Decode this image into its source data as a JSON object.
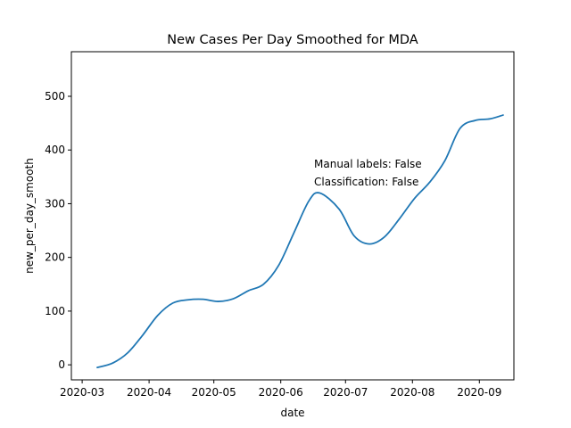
{
  "chart_data": {
    "type": "line",
    "title": "New Cases Per Day Smoothed for MDA",
    "xlabel": "date",
    "ylabel": "new_per_day_smooth",
    "xlim": [
      "2020-02-25",
      "2020-09-17"
    ],
    "ylim": [
      -28,
      583
    ],
    "x_ticks": [
      "2020-03-01",
      "2020-04-01",
      "2020-05-01",
      "2020-06-01",
      "2020-07-01",
      "2020-08-01",
      "2020-09-01"
    ],
    "x_tick_labels": [
      "2020-03",
      "2020-04",
      "2020-05",
      "2020-06",
      "2020-07",
      "2020-08",
      "2020-09"
    ],
    "y_ticks": [
      0,
      100,
      200,
      300,
      400,
      500
    ],
    "y_tick_labels": [
      "0",
      "100",
      "200",
      "300",
      "400",
      "500"
    ],
    "grid": false,
    "series": [
      {
        "color": "#1f77b4",
        "points": [
          [
            "2020-03-08",
            -5
          ],
          [
            "2020-03-15",
            3
          ],
          [
            "2020-03-22",
            22
          ],
          [
            "2020-03-29",
            55
          ],
          [
            "2020-04-05",
            92
          ],
          [
            "2020-04-12",
            115
          ],
          [
            "2020-04-19",
            121
          ],
          [
            "2020-04-26",
            122
          ],
          [
            "2020-05-03",
            118
          ],
          [
            "2020-05-10",
            123
          ],
          [
            "2020-05-17",
            138
          ],
          [
            "2020-05-24",
            150
          ],
          [
            "2020-05-31",
            185
          ],
          [
            "2020-06-07",
            245
          ],
          [
            "2020-06-14",
            305
          ],
          [
            "2020-06-19",
            320
          ],
          [
            "2020-06-28",
            290
          ],
          [
            "2020-07-05",
            240
          ],
          [
            "2020-07-12",
            225
          ],
          [
            "2020-07-19",
            238
          ],
          [
            "2020-07-26",
            272
          ],
          [
            "2020-08-02",
            310
          ],
          [
            "2020-08-09",
            340
          ],
          [
            "2020-08-16",
            380
          ],
          [
            "2020-08-23",
            440
          ],
          [
            "2020-08-30",
            455
          ],
          [
            "2020-09-06",
            458
          ],
          [
            "2020-09-12",
            465
          ]
        ]
      }
    ],
    "annotations": [
      "Manual labels: False",
      "Classification: False"
    ]
  }
}
